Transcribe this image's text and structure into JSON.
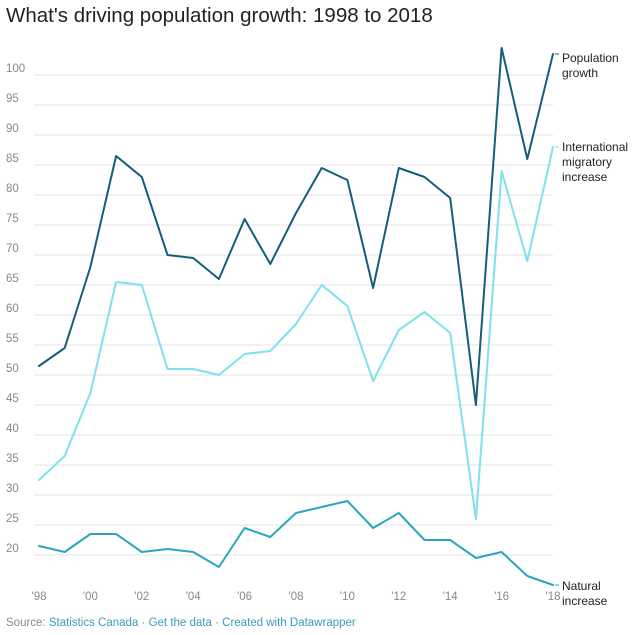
{
  "title": "What's driving population growth: 1998 to 2018",
  "footer": {
    "source_label": "Source:",
    "source_name": "Statistics Canada",
    "separator": "·",
    "get_data": "Get the data",
    "created_with": "Created with Datawrapper"
  },
  "colors": {
    "population_growth": "#155e7a",
    "international_migratory_increase": "#7fe0ef",
    "natural_increase": "#2aa6bf",
    "grid": "#e3e3e3",
    "link": "#3a9bb9"
  },
  "chart_data": {
    "type": "line",
    "title": "What's driving population growth: 1998 to 2018",
    "xlabel": "",
    "ylabel": "",
    "x": [
      1998,
      1999,
      2000,
      2001,
      2002,
      2003,
      2004,
      2005,
      2006,
      2007,
      2008,
      2009,
      2010,
      2011,
      2012,
      2013,
      2014,
      2015,
      2016,
      2017,
      2018
    ],
    "xlim": [
      1998,
      2018
    ],
    "ylim": [
      15,
      105
    ],
    "grid": true,
    "x_ticks": [
      1998,
      2000,
      2002,
      2004,
      2006,
      2008,
      2010,
      2012,
      2014,
      2016,
      2018
    ],
    "x_tick_labels": [
      "'98",
      "'00",
      "'02",
      "'04",
      "'06",
      "'08",
      "'10",
      "'12",
      "'14",
      "'16",
      "'18"
    ],
    "y_ticks": [
      20,
      25,
      30,
      35,
      40,
      45,
      50,
      55,
      60,
      65,
      70,
      75,
      80,
      85,
      90,
      95,
      100
    ],
    "y_tick_labels": [
      "20",
      "25",
      "30",
      "35",
      "40",
      "45",
      "50",
      "55",
      "60",
      "65",
      "70",
      "75",
      "80",
      "85",
      "90",
      "95",
      "100"
    ],
    "series": [
      {
        "key": "population_growth",
        "name": "Population growth",
        "label_lines": [
          "Population",
          "growth"
        ],
        "values": [
          51.5,
          54.5,
          68,
          86.5,
          83,
          70,
          69.5,
          66,
          76,
          68.5,
          77,
          84.5,
          82.5,
          64.5,
          84.5,
          83,
          79.5,
          45,
          104.5,
          86,
          103.5
        ]
      },
      {
        "key": "international_migratory_increase",
        "name": "International migratory increase",
        "label_lines": [
          "International",
          "migratory",
          "increase"
        ],
        "values": [
          32.5,
          36.5,
          47,
          65.5,
          65,
          51,
          51,
          50,
          53.5,
          54,
          58.5,
          65,
          61.5,
          49,
          57.5,
          60.5,
          57,
          26,
          84,
          69,
          88
        ]
      },
      {
        "key": "natural_increase",
        "name": "Natural increase",
        "label_lines": [
          "Natural",
          "increase"
        ],
        "values": [
          21.5,
          20.5,
          23.5,
          23.5,
          20.5,
          21,
          20.5,
          18,
          24.5,
          23,
          27,
          28,
          29,
          24.5,
          27,
          22.5,
          22.5,
          19.5,
          20.5,
          16.5,
          15
        ]
      }
    ],
    "legend": "direct labels at right end of lines"
  }
}
